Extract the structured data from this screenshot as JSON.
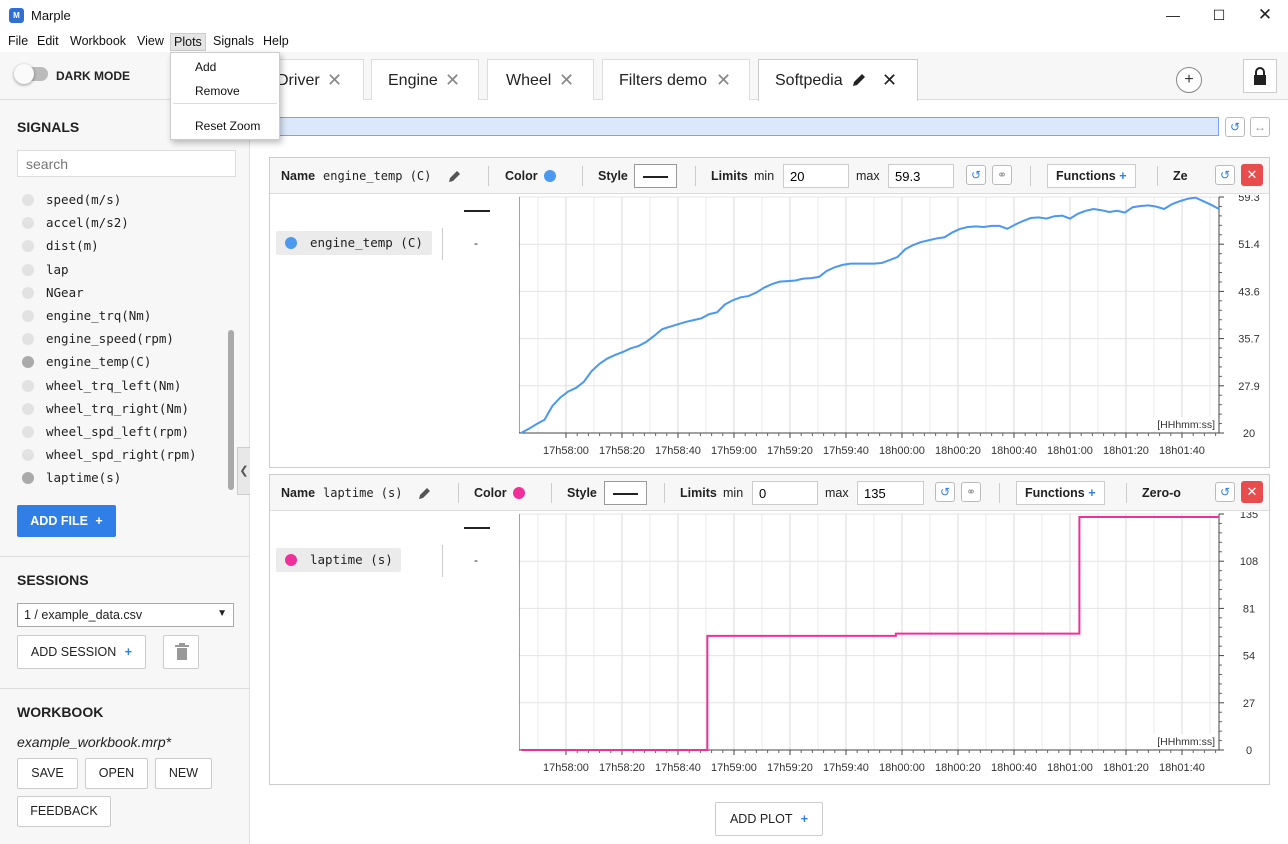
{
  "window": {
    "title": "Marple",
    "icon_text": "M"
  },
  "menubar": [
    "File",
    "Edit",
    "Workbook",
    "View",
    "Plots",
    "Signals",
    "Help"
  ],
  "plots_menu": [
    "Add",
    "Remove",
    "Reset Zoom"
  ],
  "sidebar": {
    "dark_mode_label": "DARK MODE",
    "signals_heading": "SIGNALS",
    "search_placeholder": "search",
    "signals": [
      {
        "name": "speed(m/s)",
        "selected": false
      },
      {
        "name": "accel(m/s2)",
        "selected": false
      },
      {
        "name": "dist(m)",
        "selected": false
      },
      {
        "name": "lap",
        "selected": false
      },
      {
        "name": "NGear",
        "selected": false
      },
      {
        "name": "engine_trq(Nm)",
        "selected": false
      },
      {
        "name": "engine_speed(rpm)",
        "selected": false
      },
      {
        "name": "engine_temp(C)",
        "selected": true
      },
      {
        "name": "wheel_trq_left(Nm)",
        "selected": false
      },
      {
        "name": "wheel_trq_right(Nm)",
        "selected": false
      },
      {
        "name": "wheel_spd_left(rpm)",
        "selected": false
      },
      {
        "name": "wheel_spd_right(rpm)",
        "selected": false
      },
      {
        "name": "laptime(s)",
        "selected": true
      }
    ],
    "add_file_label": "ADD FILE",
    "sessions_heading": "SESSIONS",
    "session_selected": "1 / example_data.csv",
    "add_session_label": "ADD SESSION",
    "workbook_heading": "WORKBOOK",
    "workbook_name": "example_workbook.mrp*",
    "save_label": "SAVE",
    "open_label": "OPEN",
    "new_label": "NEW",
    "feedback_label": "FEEDBACK"
  },
  "tabs": [
    {
      "label": "Driver"
    },
    {
      "label": "Engine"
    },
    {
      "label": "Wheel"
    },
    {
      "label": "Filters demo"
    },
    {
      "label": "Softpedia",
      "active": true
    }
  ],
  "add_tab_label": "+",
  "plot_header_labels": {
    "name": "Name",
    "color": "Color",
    "style": "Style",
    "limits": "Limits",
    "min": "min",
    "max": "max",
    "functions": "Functions"
  },
  "plots": [
    {
      "signal": "engine_temp (C)",
      "color": "#4a98f0",
      "min": "20",
      "max": "59.3",
      "trailing_label": "Ze",
      "legend_value": "-",
      "y_ticks": [
        "59.3",
        "51.4",
        "43.6",
        "35.7",
        "27.9",
        "20"
      ]
    },
    {
      "signal": "laptime (s)",
      "color": "#f0309a",
      "min": "0",
      "max": "135",
      "trailing_label": "Zero-o",
      "legend_value": "-",
      "y_ticks": [
        "135",
        "108",
        "81",
        "54",
        "27",
        "0"
      ]
    }
  ],
  "x_ticks": [
    "17h58:00",
    "17h58:20",
    "17h58:40",
    "17h59:00",
    "17h59:20",
    "17h59:40",
    "18h00:00",
    "18h00:20",
    "18h00:40",
    "18h01:00",
    "18h01:20",
    "18h01:40"
  ],
  "x_unit_label": "[HHhmm:ss]",
  "add_plot_label": "ADD PLOT",
  "chart_data": [
    {
      "type": "line",
      "series": [
        {
          "name": "engine_temp (C)",
          "values": [
            20,
            20.7,
            21.5,
            22.2,
            24.5,
            25.9,
            26.9,
            27.5,
            28.5,
            30.3,
            31.5,
            32.4,
            33.0,
            33.5,
            34.1,
            34.5,
            35.2,
            36.2,
            37.3,
            37.7,
            38.1,
            38.5,
            38.8,
            39.1,
            39.8,
            40.1,
            41.4,
            42.1,
            42.6,
            42.8,
            43.4,
            44.2,
            44.8,
            45.2,
            45.3,
            45.4,
            45.7,
            45.8,
            46.0,
            47.0,
            47.6,
            48.0,
            48.2,
            48.2,
            48.2,
            48.2,
            48.3,
            48.8,
            49.3,
            50.6,
            51.3,
            51.8,
            52.1,
            52.4,
            52.6,
            53.4,
            54.0,
            54.3,
            54.4,
            54.3,
            54.5,
            54.5,
            54.0,
            54.7,
            55.3,
            55.8,
            55.9,
            55.7,
            56.1,
            56.2,
            55.7,
            56.5,
            57.0,
            57.3,
            57.1,
            56.8,
            57.0,
            56.7,
            57.6,
            57.8,
            57.9,
            57.7,
            57.3,
            58.1,
            58.6,
            59.0,
            59.2,
            58.6,
            58.0,
            57.3
          ]
        }
      ],
      "ylim": [
        20,
        59.3
      ]
    },
    {
      "type": "line",
      "series": [
        {
          "name": "laptime (s)",
          "steps": [
            [
              0,
              0
            ],
            [
              0.267,
              0
            ],
            [
              0.267,
              65.3
            ],
            [
              0.537,
              65.3
            ],
            [
              0.537,
              66.6
            ],
            [
              0.8,
              66.6
            ],
            [
              0.8,
              133.3
            ],
            [
              1,
              133.3
            ]
          ]
        }
      ],
      "ylim": [
        0,
        135
      ]
    }
  ]
}
